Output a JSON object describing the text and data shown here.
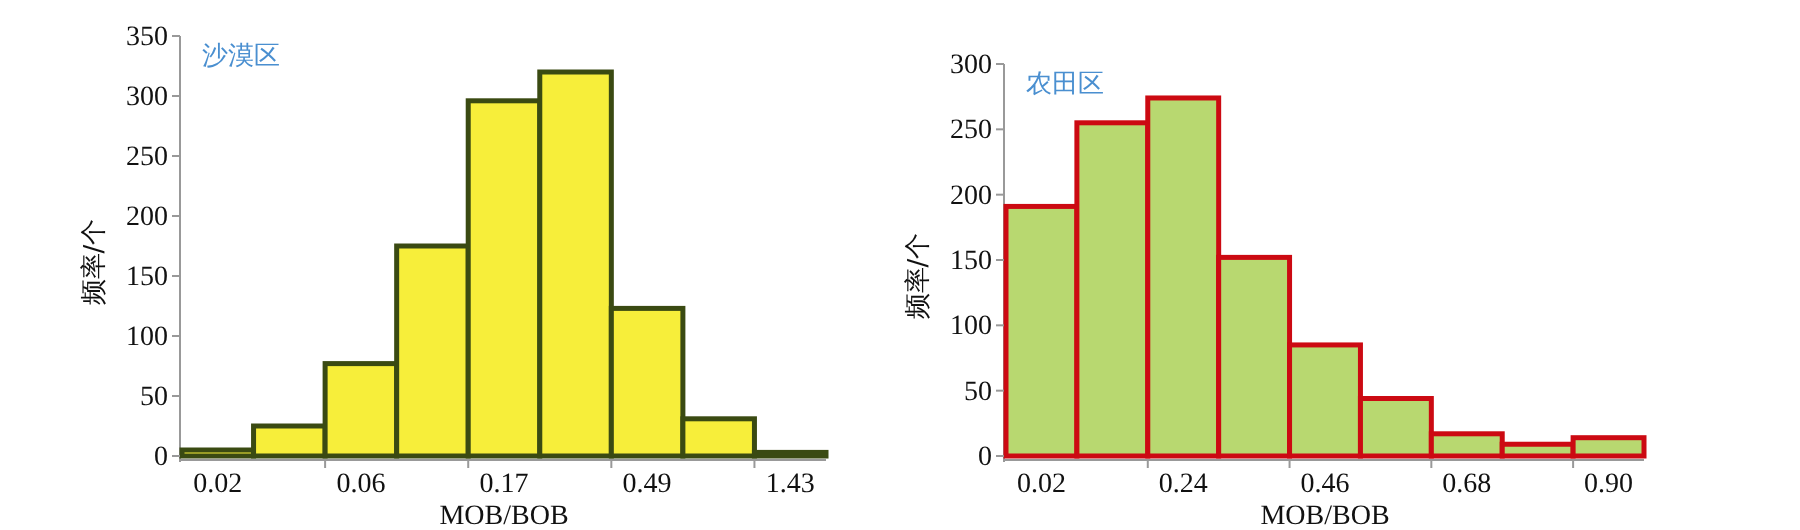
{
  "chart_data": [
    {
      "type": "bar",
      "title": "沙漠区",
      "xlabel": "MOB/BOB",
      "ylabel": "频率/个",
      "categories": [
        "0.02",
        null,
        "0.06",
        null,
        "0.17",
        null,
        "0.49",
        null,
        "1.43"
      ],
      "values": [
        5,
        25,
        77,
        175,
        296,
        320,
        123,
        31,
        3
      ],
      "color": "#f7ee3a",
      "ylim": [
        0,
        350
      ],
      "yticks": [
        0,
        50,
        100,
        150,
        200,
        250,
        300,
        350
      ]
    },
    {
      "type": "bar",
      "title": "农田区",
      "xlabel": "MOB/BOB",
      "ylabel": "频率/个",
      "categories": [
        "0.02",
        null,
        "0.24",
        null,
        "0.46",
        null,
        "0.68",
        null,
        "0.90"
      ],
      "values": [
        191,
        255,
        274,
        152,
        85,
        44,
        17,
        9,
        14
      ],
      "color": "#b8d870",
      "ylim": [
        0,
        300
      ],
      "yticks": [
        0,
        50,
        100,
        150,
        200,
        250,
        300
      ]
    }
  ]
}
